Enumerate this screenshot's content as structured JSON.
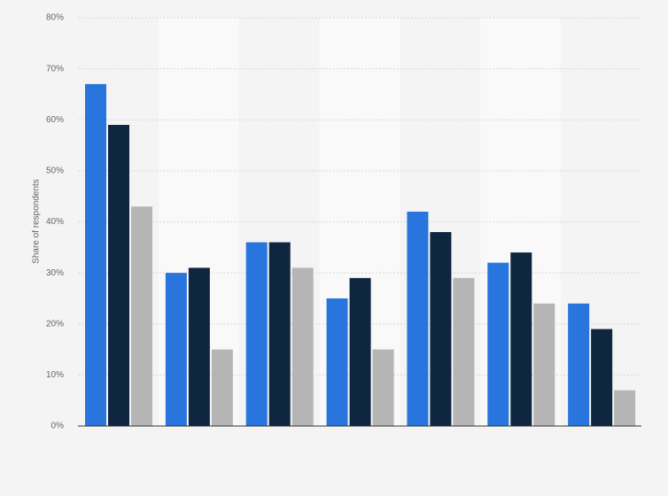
{
  "chart_data": {
    "type": "bar",
    "ylabel": "Share of respondents",
    "categories": [
      null,
      null,
      null,
      null,
      null,
      null,
      null
    ],
    "series": [
      {
        "color": "#2876dd",
        "values": [
          67,
          30,
          36,
          25,
          42,
          32,
          24
        ]
      },
      {
        "color": "#0f2640",
        "values": [
          59,
          31,
          36,
          29,
          38,
          34,
          19
        ]
      },
      {
        "color": "#b5b5b5",
        "values": [
          43,
          15,
          31,
          15,
          29,
          24,
          7
        ]
      }
    ],
    "ylim": [
      0,
      80
    ],
    "yticks": [
      {
        "value": 0,
        "label": "0%"
      },
      {
        "value": 10,
        "label": "10%"
      },
      {
        "value": 20,
        "label": "20%"
      },
      {
        "value": 30,
        "label": "30%"
      },
      {
        "value": 40,
        "label": "40%"
      },
      {
        "value": 50,
        "label": "50%"
      },
      {
        "value": 60,
        "label": "60%"
      },
      {
        "value": 70,
        "label": "70%"
      },
      {
        "value": 80,
        "label": "80%"
      }
    ],
    "grid": true
  }
}
